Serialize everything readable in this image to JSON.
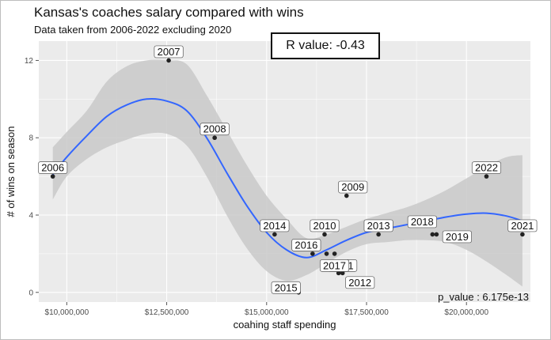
{
  "chart_data": {
    "type": "scatter",
    "title": "Kansas's coaches salary compared with wins",
    "subtitle": "Data taken from 2006-2022 excluding 2020",
    "xlabel": "coahing staff spending",
    "ylabel": "# of wins on season",
    "xlim": [
      9300000,
      21600000
    ],
    "ylim": [
      -0.5,
      13
    ],
    "x_ticks": [
      10000000,
      12500000,
      15000000,
      17500000,
      20000000
    ],
    "x_tick_labels": [
      "$10,000,000",
      "$12,500,000",
      "$15,000,000",
      "$17,500,000",
      "$20,000,000"
    ],
    "y_ticks": [
      0,
      4,
      8,
      12
    ],
    "y_tick_labels": [
      "0",
      "4",
      "8",
      "12"
    ],
    "grid": true,
    "points": [
      {
        "label": "2006",
        "x": 9650000,
        "y": 6
      },
      {
        "label": "2007",
        "x": 12550000,
        "y": 12
      },
      {
        "label": "2008",
        "x": 13700000,
        "y": 8
      },
      {
        "label": "2009",
        "x": 17000000,
        "y": 5
      },
      {
        "label": "2010",
        "x": 16450000,
        "y": 3
      },
      {
        "label": "2011",
        "x": 16700000,
        "y": 2
      },
      {
        "label": "2012",
        "x": 16900000,
        "y": 1
      },
      {
        "label": "2012",
        "x": 16800000,
        "y": 1
      },
      {
        "label": "2013",
        "x": 17800000,
        "y": 3
      },
      {
        "label": "2014",
        "x": 15200000,
        "y": 3
      },
      {
        "label": "2015",
        "x": 15800000,
        "y": 0
      },
      {
        "label": "2016",
        "x": 16150000,
        "y": 2
      },
      {
        "label": "2017",
        "x": 16500000,
        "y": 2
      },
      {
        "label": "2018",
        "x": 19150000,
        "y": 3
      },
      {
        "label": "2019",
        "x": 19250000,
        "y": 3
      },
      {
        "label": "2021",
        "x": 21400000,
        "y": 3
      },
      {
        "label": "2022",
        "x": 20500000,
        "y": 6
      }
    ],
    "trend": {
      "x": [
        9650000,
        10000000,
        10500000,
        11000000,
        11500000,
        12000000,
        12500000,
        13000000,
        13500000,
        14000000,
        14500000,
        15000000,
        15500000,
        16000000,
        16500000,
        17000000,
        17500000,
        18000000,
        18500000,
        19000000,
        19500000,
        20000000,
        20500000,
        21000000,
        21400000
      ],
      "y": [
        6.1,
        7.0,
        8.1,
        9.1,
        9.7,
        10.0,
        9.9,
        9.4,
        8.0,
        6.2,
        4.5,
        3.1,
        2.2,
        1.8,
        2.2,
        2.7,
        3.1,
        3.3,
        3.5,
        3.7,
        3.9,
        4.05,
        4.1,
        3.95,
        3.7
      ],
      "lower": [
        4.8,
        6.0,
        6.9,
        7.5,
        7.9,
        8.2,
        8.2,
        7.6,
        6.0,
        4.0,
        2.3,
        1.1,
        0.6,
        0.9,
        1.5,
        2.1,
        2.5,
        2.6,
        2.7,
        2.7,
        2.6,
        2.2,
        1.6,
        0.9,
        0.3
      ],
      "upper": [
        7.5,
        8.3,
        9.4,
        10.9,
        11.7,
        12.0,
        12.0,
        11.8,
        10.2,
        8.4,
        6.6,
        5.0,
        3.8,
        2.8,
        3.0,
        3.4,
        3.8,
        4.1,
        4.4,
        4.8,
        5.3,
        5.9,
        6.5,
        7.0,
        7.1
      ]
    },
    "colors": {
      "line": "#3366ff",
      "band": "#c9c9c9",
      "panel": "#ebebeb",
      "grid": "#ffffff",
      "point": "#222222"
    },
    "r_value_label": "R value: -0.43",
    "p_value_label": "p_value : 6.175e-13"
  }
}
